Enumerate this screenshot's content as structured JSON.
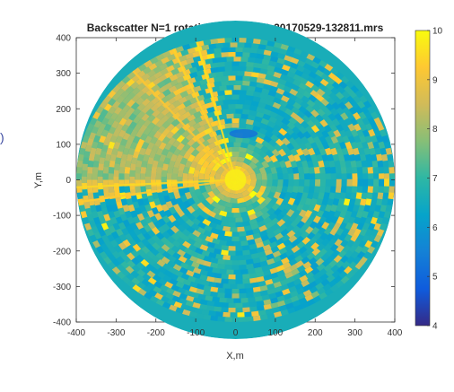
{
  "chart_data": {
    "type": "heatmap",
    "subtype": "polar-radar-backscatter",
    "title": "Backscatter N=1 rotations. File SRC-20170529-132811.mrs",
    "xlabel": "X,m",
    "ylabel": "Y,m",
    "xlim": [
      -400,
      400
    ],
    "ylim": [
      -400,
      400
    ],
    "x_ticks": [
      -400,
      -300,
      -200,
      -100,
      0,
      100,
      200,
      300,
      400
    ],
    "y_ticks": [
      400,
      300,
      200,
      100,
      0,
      -100,
      -200,
      -300,
      -400
    ],
    "coverage_radius_m": 400,
    "colorbar": {
      "range": [
        4,
        10
      ],
      "ticks": [
        10,
        9,
        8,
        7,
        6,
        5,
        4
      ],
      "colormap": "parula"
    },
    "features": [
      {
        "kind": "high-backscatter-sector",
        "azimuth_from_deg": 110,
        "azimuth_to_deg": 185,
        "level": 8.5
      },
      {
        "kind": "bright-ray",
        "azimuth_deg": 104,
        "level": 9.6
      },
      {
        "kind": "bright-ray",
        "azimuth_deg": 113,
        "level": 9.4
      },
      {
        "kind": "bright-ray",
        "azimuth_deg": 130,
        "level": 9.2
      },
      {
        "kind": "bright-ray",
        "azimuth_deg": 183,
        "level": 9.5
      },
      {
        "kind": "bright-ray",
        "azimuth_deg": 189,
        "level": 9.3
      },
      {
        "kind": "near-range-hotspot",
        "radius_m": 60,
        "level": 9.8
      },
      {
        "kind": "dark-patch",
        "x_m": 20,
        "y_m": 130,
        "level": 5.2
      }
    ],
    "background_level": 6.6,
    "grid": false,
    "legend": "none"
  },
  "labels": {
    "edge_glyph": ")"
  },
  "colors": {
    "colormap_stops": [
      "#352a87",
      "#0f5cdd",
      "#1481d6",
      "#06a4ca",
      "#2eb7a4",
      "#87bf77",
      "#d1bb59",
      "#fec832",
      "#f9fb0e"
    ],
    "axis": "#333333",
    "plot_background": "#ffffff",
    "figure_background": "#ffffff",
    "paren": "#3c4aa0"
  }
}
